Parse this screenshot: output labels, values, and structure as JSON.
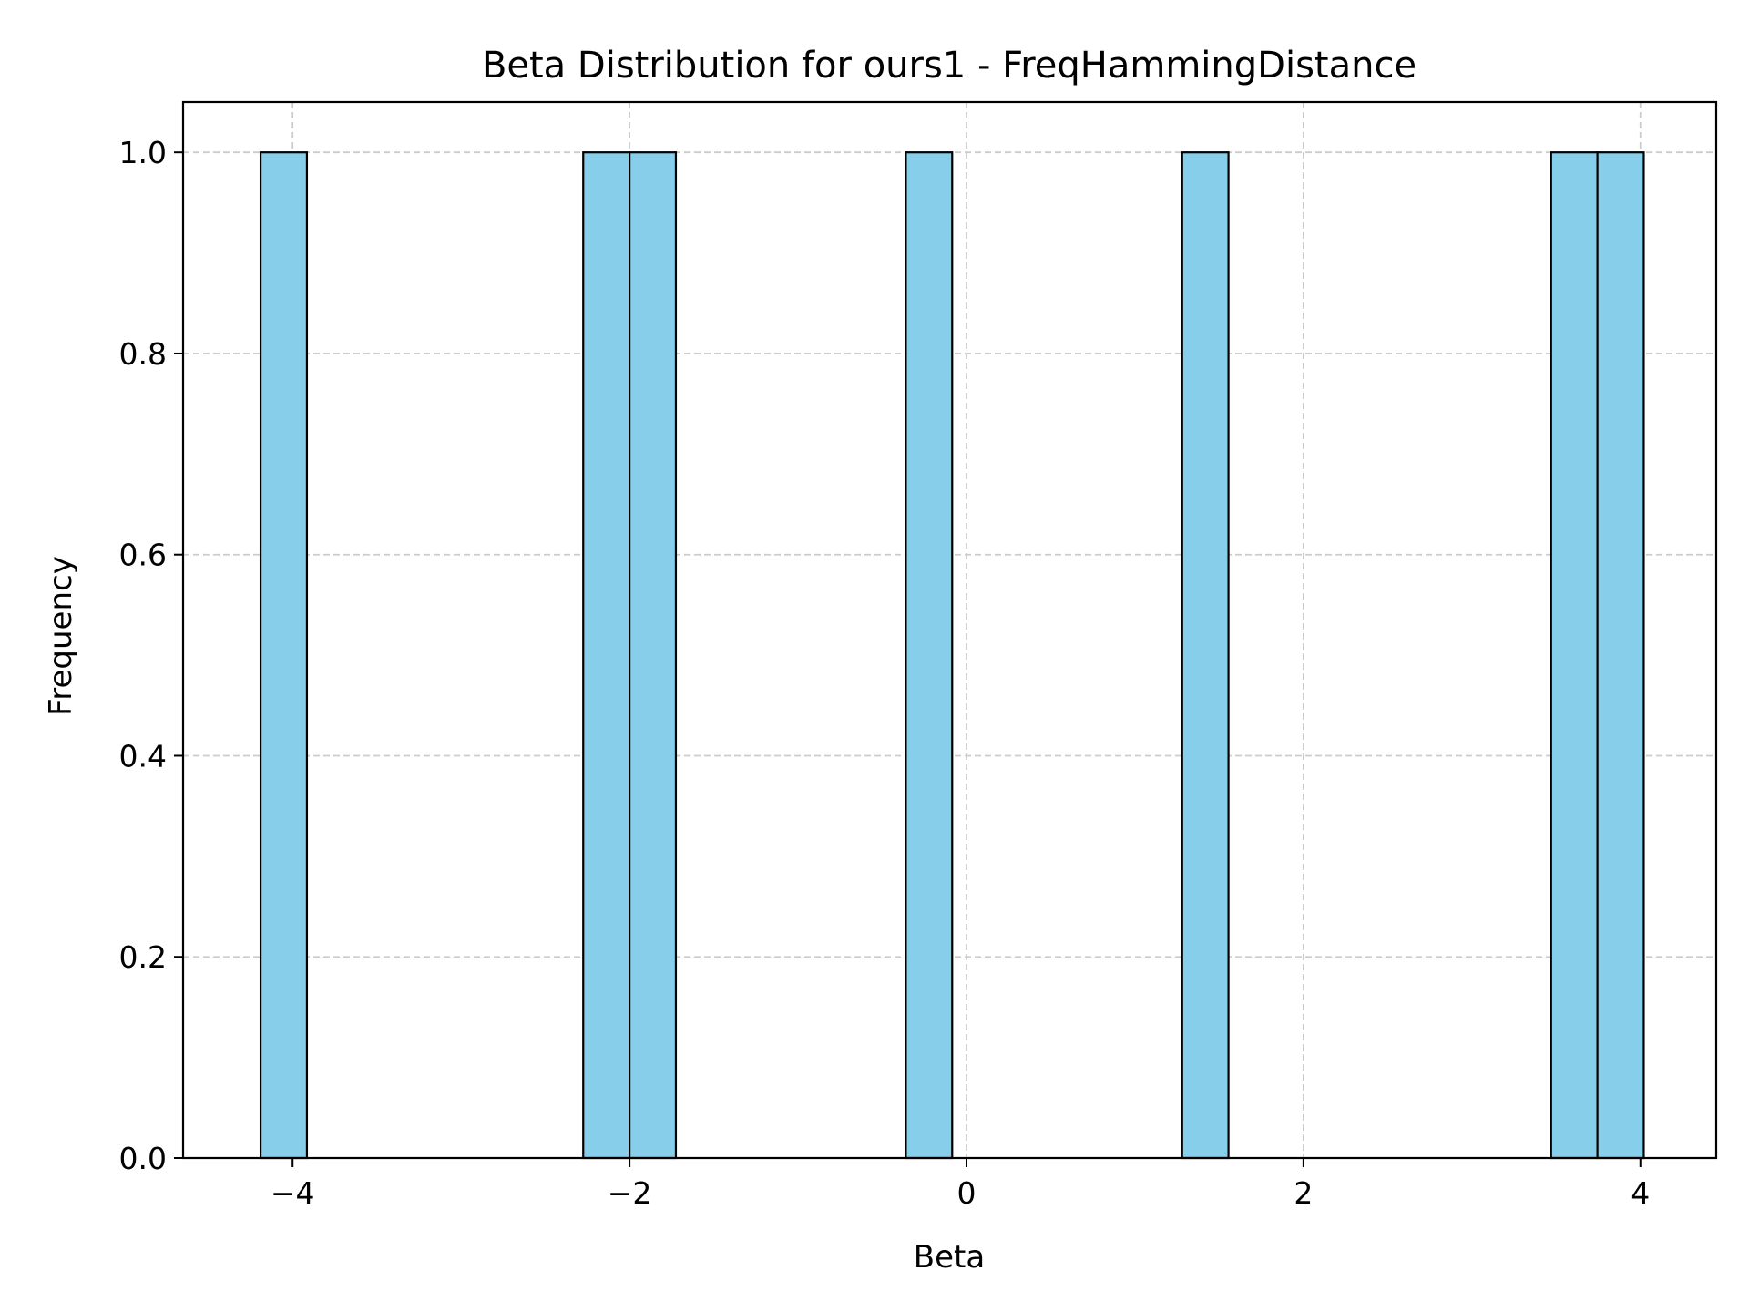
{
  "chart_data": {
    "type": "bar",
    "title": "Beta Distribution for ours1 - FreqHammingDistance",
    "xlabel": "Beta",
    "ylabel": "Frequency",
    "xlim": [
      -4.65,
      4.45
    ],
    "ylim": [
      0,
      1.05
    ],
    "xticks": [
      -4,
      -2,
      0,
      2,
      4
    ],
    "xtick_labels": [
      "−4",
      "−2",
      "0",
      "2",
      "4"
    ],
    "yticks": [
      0.0,
      0.2,
      0.4,
      0.6,
      0.8,
      1.0
    ],
    "ytick_labels": [
      "0.0",
      "0.2",
      "0.4",
      "0.6",
      "0.8",
      "1.0"
    ],
    "grid": true,
    "bar_color": "#87CEEB",
    "edge_color": "#000000",
    "grid_color": "#cccccc",
    "bins": [
      {
        "x0": -4.19,
        "x1": -3.915,
        "count": 1
      },
      {
        "x0": -2.275,
        "x1": -2.0,
        "count": 1
      },
      {
        "x0": -2.0,
        "x1": -1.725,
        "count": 1
      },
      {
        "x0": -0.36,
        "x1": -0.085,
        "count": 1
      },
      {
        "x0": 1.28,
        "x1": 1.555,
        "count": 1
      },
      {
        "x0": 3.47,
        "x1": 3.745,
        "count": 1
      },
      {
        "x0": 3.745,
        "x1": 4.02,
        "count": 1
      }
    ]
  }
}
